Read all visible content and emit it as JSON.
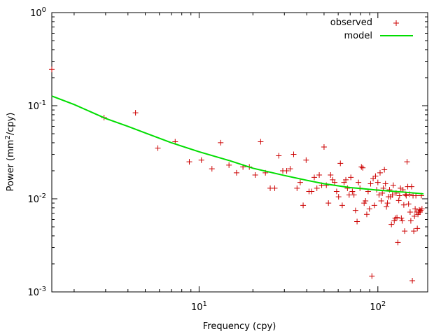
{
  "chart_data": {
    "type": "scatter",
    "xscale": "log",
    "yscale": "log",
    "xlim": [
      1.5,
      190
    ],
    "ylim": [
      0.001,
      1
    ],
    "xlabel": "Frequency (cpy)",
    "ylabel_parts": [
      "Power (mm",
      "2",
      "/cpy)"
    ],
    "x_ticks": [
      {
        "value": 10,
        "base": "10",
        "exp": "1"
      },
      {
        "value": 100,
        "base": "10",
        "exp": "2"
      }
    ],
    "y_ticks": [
      {
        "value": 0.001,
        "base": "10",
        "exp": "-3"
      },
      {
        "value": 0.01,
        "base": "10",
        "exp": "-2"
      },
      {
        "value": 0.1,
        "base": "10",
        "exp": "-1"
      },
      {
        "value": 1,
        "base": "10",
        "exp": "0"
      }
    ],
    "colors": {
      "observed": "#cc0000",
      "model": "#00dd00",
      "frame": "#000000"
    },
    "series": [
      {
        "name": "observed",
        "style": "points",
        "marker": "+",
        "points": [
          [
            1.5,
            0.245
          ],
          [
            2.94,
            0.0745
          ],
          [
            4.41,
            0.084
          ],
          [
            5.88,
            0.035
          ],
          [
            7.35,
            0.041
          ],
          [
            8.82,
            0.025
          ],
          [
            10.3,
            0.026
          ],
          [
            11.8,
            0.021
          ],
          [
            13.2,
            0.04
          ],
          [
            14.7,
            0.023
          ],
          [
            16.2,
            0.019
          ],
          [
            17.6,
            0.022
          ],
          [
            19.1,
            0.022
          ],
          [
            20.6,
            0.018
          ],
          [
            22.1,
            0.041
          ],
          [
            23.5,
            0.019
          ],
          [
            25.0,
            0.013
          ],
          [
            26.5,
            0.013
          ],
          [
            27.9,
            0.029
          ],
          [
            29.4,
            0.02
          ],
          [
            30.9,
            0.02
          ],
          [
            32.3,
            0.021
          ],
          [
            33.8,
            0.03
          ],
          [
            35.3,
            0.013
          ],
          [
            36.8,
            0.015
          ],
          [
            38.2,
            0.0085
          ],
          [
            39.7,
            0.026
          ],
          [
            41.2,
            0.012
          ],
          [
            42.6,
            0.012
          ],
          [
            44.1,
            0.017
          ],
          [
            45.6,
            0.013
          ],
          [
            47.0,
            0.018
          ],
          [
            48.5,
            0.014
          ],
          [
            50.0,
            0.036
          ],
          [
            51.5,
            0.014
          ],
          [
            52.9,
            0.009
          ],
          [
            54.4,
            0.018
          ],
          [
            55.9,
            0.016
          ],
          [
            57.3,
            0.015
          ],
          [
            58.8,
            0.012
          ],
          [
            60.3,
            0.0105
          ],
          [
            61.7,
            0.024
          ],
          [
            63.2,
            0.0085
          ],
          [
            64.7,
            0.015
          ],
          [
            66.2,
            0.016
          ],
          [
            67.6,
            0.013
          ],
          [
            69.1,
            0.011
          ],
          [
            70.6,
            0.017
          ],
          [
            72.0,
            0.012
          ],
          [
            73.5,
            0.011
          ],
          [
            75.0,
            0.0075
          ],
          [
            76.5,
            0.0057
          ],
          [
            77.9,
            0.015
          ],
          [
            79.4,
            0.013
          ],
          [
            80.9,
            0.022
          ],
          [
            82.3,
            0.0215
          ],
          [
            83.8,
            0.009
          ],
          [
            85.3,
            0.0095
          ],
          [
            86.7,
            0.0068
          ],
          [
            88.2,
            0.012
          ],
          [
            89.7,
            0.0078
          ],
          [
            91.1,
            0.0145
          ],
          [
            92.6,
            0.00148
          ],
          [
            94.1,
            0.0165
          ],
          [
            95.6,
            0.0085
          ],
          [
            97.0,
            0.0175
          ],
          [
            98.5,
            0.0125
          ],
          [
            100.0,
            0.015
          ],
          [
            101.5,
            0.011
          ],
          [
            102.9,
            0.019
          ],
          [
            104.4,
            0.0095
          ],
          [
            105.9,
            0.0115
          ],
          [
            107.3,
            0.013
          ],
          [
            108.8,
            0.0205
          ],
          [
            110.3,
            0.0145
          ],
          [
            111.7,
            0.0082
          ],
          [
            113.2,
            0.009
          ],
          [
            114.7,
            0.0105
          ],
          [
            116.2,
            0.0125
          ],
          [
            117.6,
            0.0105
          ],
          [
            119.1,
            0.0053
          ],
          [
            120.6,
            0.011
          ],
          [
            122.0,
            0.014
          ],
          [
            123.5,
            0.0058
          ],
          [
            125.0,
            0.0062
          ],
          [
            126.5,
            0.0115
          ],
          [
            127.9,
            0.0063
          ],
          [
            129.4,
            0.0034
          ],
          [
            130.9,
            0.0096
          ],
          [
            132.3,
            0.0108
          ],
          [
            133.8,
            0.013
          ],
          [
            135.3,
            0.0062
          ],
          [
            136.7,
            0.0058
          ],
          [
            138.2,
            0.0125
          ],
          [
            139.7,
            0.0086
          ],
          [
            141.2,
            0.0045
          ],
          [
            142.6,
            0.0112
          ],
          [
            144.1,
            0.0108
          ],
          [
            145.6,
            0.025
          ],
          [
            147.0,
            0.0135
          ],
          [
            148.5,
            0.0088
          ],
          [
            150.0,
            0.0112
          ],
          [
            151.5,
            0.0072
          ],
          [
            152.9,
            0.0058
          ],
          [
            154.4,
            0.0135
          ],
          [
            155.9,
            0.00132
          ],
          [
            157.3,
            0.0108
          ],
          [
            158.8,
            0.0045
          ],
          [
            160.3,
            0.0065
          ],
          [
            161.7,
            0.0078
          ],
          [
            163.2,
            0.0108
          ],
          [
            164.7,
            0.0072
          ],
          [
            166.2,
            0.0048
          ],
          [
            167.6,
            0.0068
          ],
          [
            169.1,
            0.0072
          ],
          [
            170.6,
            0.0076
          ],
          [
            172.0,
            0.0072
          ],
          [
            173.5,
            0.0075
          ],
          [
            175.0,
            0.0108
          ],
          [
            176.5,
            0.0078
          ]
        ]
      },
      {
        "name": "model",
        "style": "line",
        "points": [
          [
            1.5,
            0.127
          ],
          [
            2,
            0.103
          ],
          [
            3,
            0.073
          ],
          [
            4,
            0.06
          ],
          [
            5,
            0.051
          ],
          [
            7,
            0.04
          ],
          [
            10,
            0.032
          ],
          [
            15,
            0.0255
          ],
          [
            20,
            0.0213
          ],
          [
            30,
            0.0178
          ],
          [
            40,
            0.0158
          ],
          [
            50,
            0.0145
          ],
          [
            70,
            0.0132
          ],
          [
            100,
            0.0124
          ],
          [
            140,
            0.0118
          ],
          [
            180,
            0.0113
          ]
        ]
      }
    ],
    "legend": {
      "position": "top-right",
      "entries": [
        "observed",
        "model"
      ]
    }
  }
}
